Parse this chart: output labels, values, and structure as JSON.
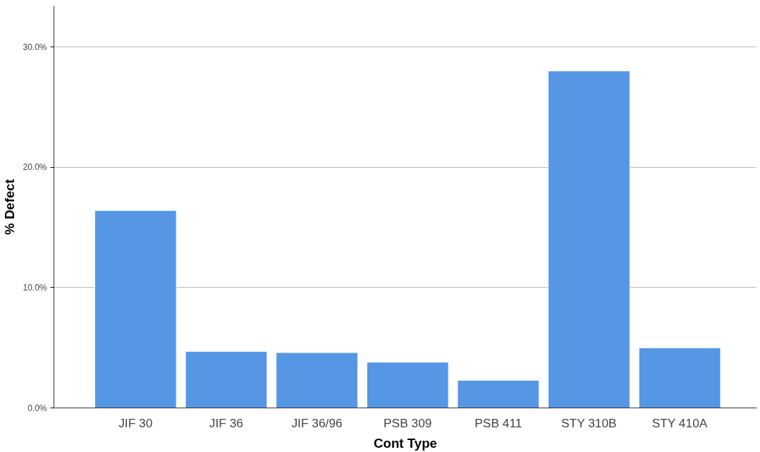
{
  "chart_data": {
    "type": "bar",
    "xlabel": "Cont Type",
    "ylabel": "% Defect",
    "categories": [
      "JIF 30",
      "JIF 36",
      "JIF 36/96",
      "PSB 309",
      "PSB 411",
      "STY 310B",
      "STY 410A"
    ],
    "values": [
      16.4,
      4.7,
      4.6,
      3.8,
      2.3,
      28.0,
      5.0
    ],
    "color": "#5596e5",
    "ylim": [
      0,
      33.4
    ],
    "yticks": [
      {
        "value": 0,
        "label": "0.0%"
      },
      {
        "value": 10,
        "label": "10.0%"
      },
      {
        "value": 20,
        "label": "20.0%"
      },
      {
        "value": 30,
        "label": "30.0%"
      }
    ],
    "grid": "y"
  }
}
